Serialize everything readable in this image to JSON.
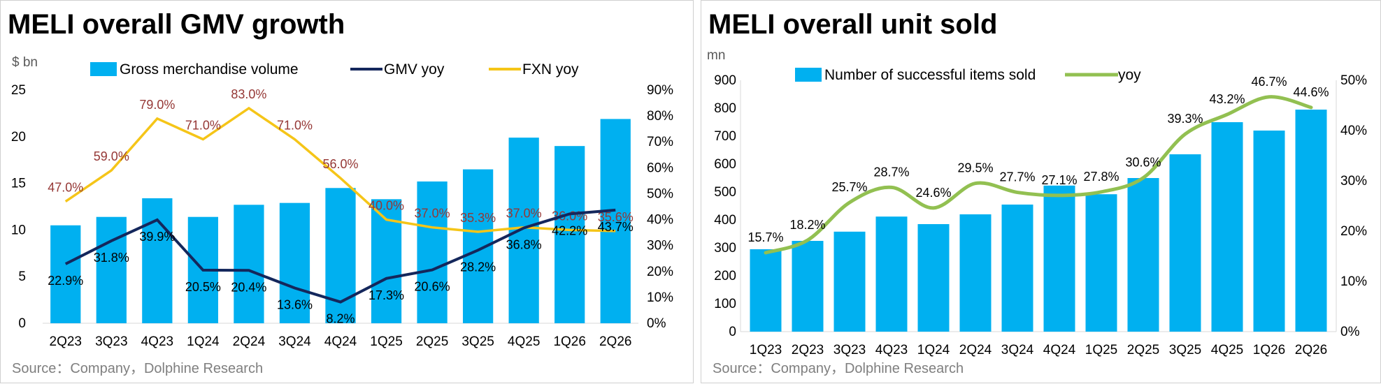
{
  "colors": {
    "bar": "#00b0f0",
    "gmv_yoy": "#14275c",
    "fxn_yoy": "#f5c518",
    "yoy_green": "#92c051",
    "label_red": "#953735",
    "grid": "#d9d9d9"
  },
  "chart_data": [
    {
      "type": "bar",
      "title": "MELI overall GMV growth",
      "source": "Source：Company，Dolphine Research",
      "ylabel": "$ bn",
      "categories": [
        "2Q23",
        "3Q23",
        "4Q23",
        "1Q24",
        "2Q24",
        "3Q24",
        "4Q24",
        "1Q25",
        "2Q25",
        "3Q25",
        "4Q25",
        "1Q26",
        "2Q26"
      ],
      "ylim": [
        0,
        25
      ],
      "yticks": [
        0,
        5,
        10,
        15,
        20,
        25
      ],
      "y2lim": [
        0,
        90
      ],
      "y2ticks": [
        "0%",
        "10%",
        "20%",
        "30%",
        "40%",
        "50%",
        "60%",
        "70%",
        "80%",
        "90%"
      ],
      "legend_position": "top",
      "series": [
        {
          "name": "Gross merchandise volume",
          "kind": "bar",
          "axis": "left",
          "values": [
            10.5,
            11.4,
            13.4,
            11.4,
            12.7,
            12.9,
            14.5,
            13.3,
            15.2,
            16.5,
            19.9,
            19.0,
            21.9
          ]
        },
        {
          "name": "GMV yoy",
          "kind": "line",
          "axis": "right",
          "values": [
            22.9,
            31.8,
            39.9,
            20.5,
            20.4,
            13.6,
            8.2,
            17.3,
            20.6,
            28.2,
            36.8,
            42.2,
            43.7
          ],
          "labels": [
            "22.9%",
            "31.8%",
            "39.9%",
            "20.5%",
            "20.4%",
            "13.6%",
            "8.2%",
            "17.3%",
            "20.6%",
            "28.2%",
            "36.8%",
            "42.2%",
            "43.7%"
          ]
        },
        {
          "name": "FXN yoy",
          "kind": "line",
          "axis": "right",
          "values": [
            47.0,
            59.0,
            79.0,
            71.0,
            83.0,
            71.0,
            56.0,
            40.0,
            37.0,
            35.3,
            37.0,
            36.0,
            35.6
          ],
          "labels": [
            "47.0%",
            "59.0%",
            "79.0%",
            "71.0%",
            "83.0%",
            "71.0%",
            "56.0%",
            "40.0%",
            "37.0%",
            "35.3%",
            "37.0%",
            "36.0%",
            "35.6%"
          ]
        }
      ]
    },
    {
      "type": "bar",
      "title": "MELI overall unit sold",
      "source": "Source：Company，Dolphine Research",
      "ylabel": "mn",
      "categories": [
        "1Q23",
        "2Q23",
        "3Q23",
        "4Q23",
        "1Q24",
        "2Q24",
        "3Q24",
        "4Q24",
        "1Q25",
        "2Q25",
        "3Q25",
        "4Q25",
        "1Q26",
        "2Q26"
      ],
      "ylim": [
        0,
        900
      ],
      "yticks": [
        0,
        100,
        200,
        300,
        400,
        500,
        600,
        700,
        800,
        900
      ],
      "y2lim": [
        0,
        50
      ],
      "y2ticks": [
        "0%",
        "10%",
        "20%",
        "30%",
        "40%",
        "50%"
      ],
      "legend_position": "top",
      "series": [
        {
          "name": "Number of successful items sold",
          "kind": "bar",
          "axis": "left",
          "values": [
            295,
            325,
            358,
            412,
            385,
            420,
            455,
            523,
            492,
            550,
            635,
            750,
            720,
            795
          ]
        },
        {
          "name": "yoy",
          "kind": "line",
          "axis": "right",
          "values": [
            15.7,
            18.2,
            25.7,
            28.7,
            24.6,
            29.5,
            27.7,
            27.1,
            27.8,
            30.6,
            39.3,
            43.2,
            46.7,
            44.6
          ],
          "labels": [
            "15.7%",
            "18.2%",
            "25.7%",
            "28.7%",
            "24.6%",
            "29.5%",
            "27.7%",
            "27.1%",
            "27.8%",
            "30.6%",
            "39.3%",
            "43.2%",
            "46.7%",
            "44.6%"
          ]
        }
      ]
    }
  ]
}
